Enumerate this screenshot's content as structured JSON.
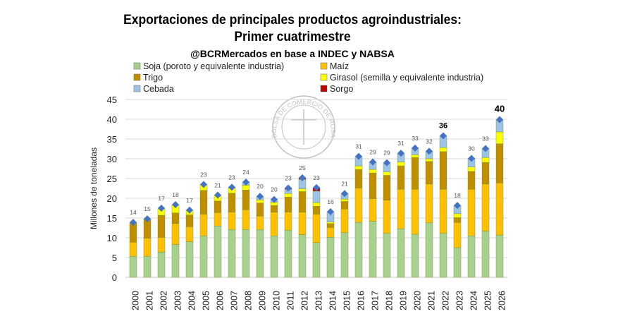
{
  "chart_data": {
    "type": "bar",
    "stacked": true,
    "title": "Exportaciones de principales productos agroindustriales:",
    "subtitle": "Primer cuatrimestre",
    "source": "@BCRMercados en base a INDEC y NABSA",
    "ylabel": "Millones de toneladas",
    "xlabel": "",
    "ylim": [
      0,
      45
    ],
    "yticks": [
      0,
      5,
      10,
      15,
      20,
      25,
      30,
      35,
      40,
      45
    ],
    "grid": true,
    "legend_placement": "top",
    "watermark": "BOLSA DE COMERCIO DE ROSARIO",
    "categories": [
      "2000",
      "2001",
      "2002",
      "2003",
      "2004",
      "2005",
      "2006",
      "2007",
      "2008",
      "2009",
      "2010",
      "2011",
      "2012",
      "2013",
      "2014",
      "2015",
      "2016",
      "2017",
      "2018",
      "2019",
      "2020",
      "2021",
      "2022",
      "2023",
      "2024",
      "2025",
      "2026"
    ],
    "series": [
      {
        "name": "Soja (poroto y equivalente industria)",
        "color": "#a9d18e",
        "values": [
          5.3,
          5.3,
          6.4,
          8.3,
          9.0,
          10.5,
          13.0,
          12.1,
          12.1,
          12.1,
          10.5,
          11.9,
          10.8,
          8.8,
          10.1,
          11.3,
          13.9,
          14.2,
          11.1,
          12.3,
          10.9,
          13.8,
          11.1,
          7.5,
          10.5,
          11.7,
          10.7
        ]
      },
      {
        "name": "Maíz",
        "color": "#ffc000",
        "values": [
          3.6,
          4.6,
          3.7,
          5.3,
          3.8,
          5.5,
          3.4,
          4.4,
          5.0,
          3.4,
          6.0,
          4.6,
          5.7,
          7.2,
          2.5,
          6.0,
          8.7,
          5.7,
          8.4,
          10.0,
          11.4,
          9.8,
          11.2,
          6.4,
          11.8,
          11.9,
          13.2
        ]
      },
      {
        "name": "Trigo",
        "color": "#bf8f00",
        "values": [
          5.0,
          4.9,
          5.6,
          2.7,
          3.0,
          6.0,
          2.9,
          4.8,
          5.0,
          3.3,
          1.7,
          3.8,
          5.2,
          2.0,
          1.0,
          1.9,
          4.7,
          6.5,
          6.3,
          5.9,
          8.0,
          5.7,
          9.5,
          1.2,
          4.5,
          5.5,
          9.9
        ]
      },
      {
        "name": "Girasol (semilla y equivalente industria)",
        "color": "#ffff00",
        "values": [
          0,
          0,
          1.8,
          2.1,
          1.2,
          1.5,
          1.5,
          1.3,
          1.2,
          0.8,
          0.8,
          0.9,
          0.7,
          0.9,
          0.4,
          0.6,
          0.9,
          0.9,
          0.9,
          1.0,
          0.7,
          0.7,
          1.0,
          1.0,
          1.1,
          1.2,
          3.0
        ]
      },
      {
        "name": "Cebada",
        "color": "#9dc3e6",
        "values": [
          0,
          0,
          0,
          0,
          0,
          0,
          0,
          0.2,
          0.8,
          0.9,
          0.7,
          1.1,
          2.4,
          2.9,
          2.6,
          1.4,
          2.4,
          1.9,
          2.3,
          2.2,
          1.7,
          1.9,
          3.0,
          2.1,
          2.2,
          2.3,
          3.1
        ]
      },
      {
        "name": "Sorgo",
        "color": "#c00000",
        "values": [
          0,
          0,
          0,
          0,
          0,
          0,
          0,
          0,
          0,
          0,
          0,
          0.3,
          0.4,
          0.9,
          0,
          0,
          0,
          0,
          0,
          0,
          0,
          0,
          0,
          0,
          0,
          0,
          0
        ]
      }
    ],
    "total_labels": [
      "14",
      "15",
      "17",
      "18",
      "17",
      "23",
      "21",
      "23",
      "24",
      "20",
      "20",
      "23",
      "25",
      "23",
      "16",
      "21",
      "31",
      "29",
      "29",
      "31",
      "33",
      "32",
      "36",
      "18",
      "30",
      "33",
      "40"
    ],
    "total_marker_color": "#4472c4"
  }
}
